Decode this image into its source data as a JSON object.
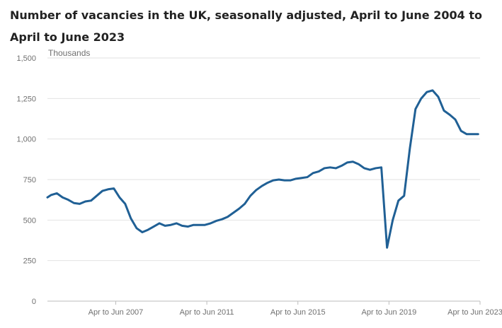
{
  "chart_data": {
    "type": "line",
    "title": "Number of vacancies in the UK, seasonally adjusted, April to June 2004 to April to June 2023",
    "ylabel": "Thousands",
    "xlabel": "",
    "ylim": [
      0,
      1500
    ],
    "xlim": [
      2004.375,
      2023.375
    ],
    "y_ticks": [
      0,
      250,
      500,
      750,
      1000,
      1250,
      1500
    ],
    "y_tick_labels": [
      "0",
      "250",
      "500",
      "750",
      "1,000",
      "1,250",
      "1,500"
    ],
    "x_ticks": [
      {
        "x": 2007.375,
        "label": "Apr to Jun 2007"
      },
      {
        "x": 2011.375,
        "label": "Apr to Jun 2011"
      },
      {
        "x": 2015.375,
        "label": "Apr to Jun 2015"
      },
      {
        "x": 2019.375,
        "label": "Apr to Jun 2019"
      },
      {
        "x": 2023.375,
        "label": "Apr to Jun 2023"
      }
    ],
    "grid": "horizontal",
    "line_color": "#206095",
    "series": [
      {
        "name": "",
        "x": [
          2004.375,
          2004.54,
          2004.79,
          2005.04,
          2005.29,
          2005.54,
          2005.79,
          2006.04,
          2006.29,
          2006.54,
          2006.79,
          2007.04,
          2007.29,
          2007.54,
          2007.79,
          2008.04,
          2008.29,
          2008.54,
          2008.79,
          2009.04,
          2009.29,
          2009.54,
          2009.79,
          2010.04,
          2010.29,
          2010.54,
          2010.79,
          2011.04,
          2011.29,
          2011.54,
          2011.79,
          2012.04,
          2012.29,
          2012.54,
          2012.79,
          2013.04,
          2013.29,
          2013.54,
          2013.79,
          2014.04,
          2014.29,
          2014.54,
          2014.79,
          2015.04,
          2015.29,
          2015.54,
          2015.79,
          2016.04,
          2016.29,
          2016.54,
          2016.79,
          2017.04,
          2017.29,
          2017.54,
          2017.79,
          2018.04,
          2018.29,
          2018.54,
          2018.79,
          2019.04,
          2019.29,
          2019.54,
          2019.79,
          2020.04,
          2020.29,
          2020.54,
          2020.79,
          2021.04,
          2021.29,
          2021.54,
          2021.79,
          2022.04,
          2022.29,
          2022.54,
          2022.79,
          2023.04,
          2023.29
        ],
        "values": [
          640,
          655,
          665,
          640,
          625,
          605,
          600,
          615,
          620,
          650,
          680,
          690,
          695,
          640,
          600,
          510,
          450,
          425,
          440,
          460,
          480,
          465,
          470,
          480,
          465,
          460,
          470,
          470,
          470,
          480,
          495,
          505,
          520,
          545,
          570,
          600,
          650,
          685,
          710,
          730,
          745,
          750,
          745,
          745,
          755,
          760,
          765,
          790,
          800,
          820,
          825,
          820,
          835,
          855,
          860,
          845,
          820,
          810,
          820,
          825,
          330,
          500,
          620,
          650,
          940,
          1185,
          1250,
          1290,
          1300,
          1260,
          1175,
          1150,
          1120,
          1050,
          1030,
          1030,
          1030
        ]
      }
    ]
  }
}
